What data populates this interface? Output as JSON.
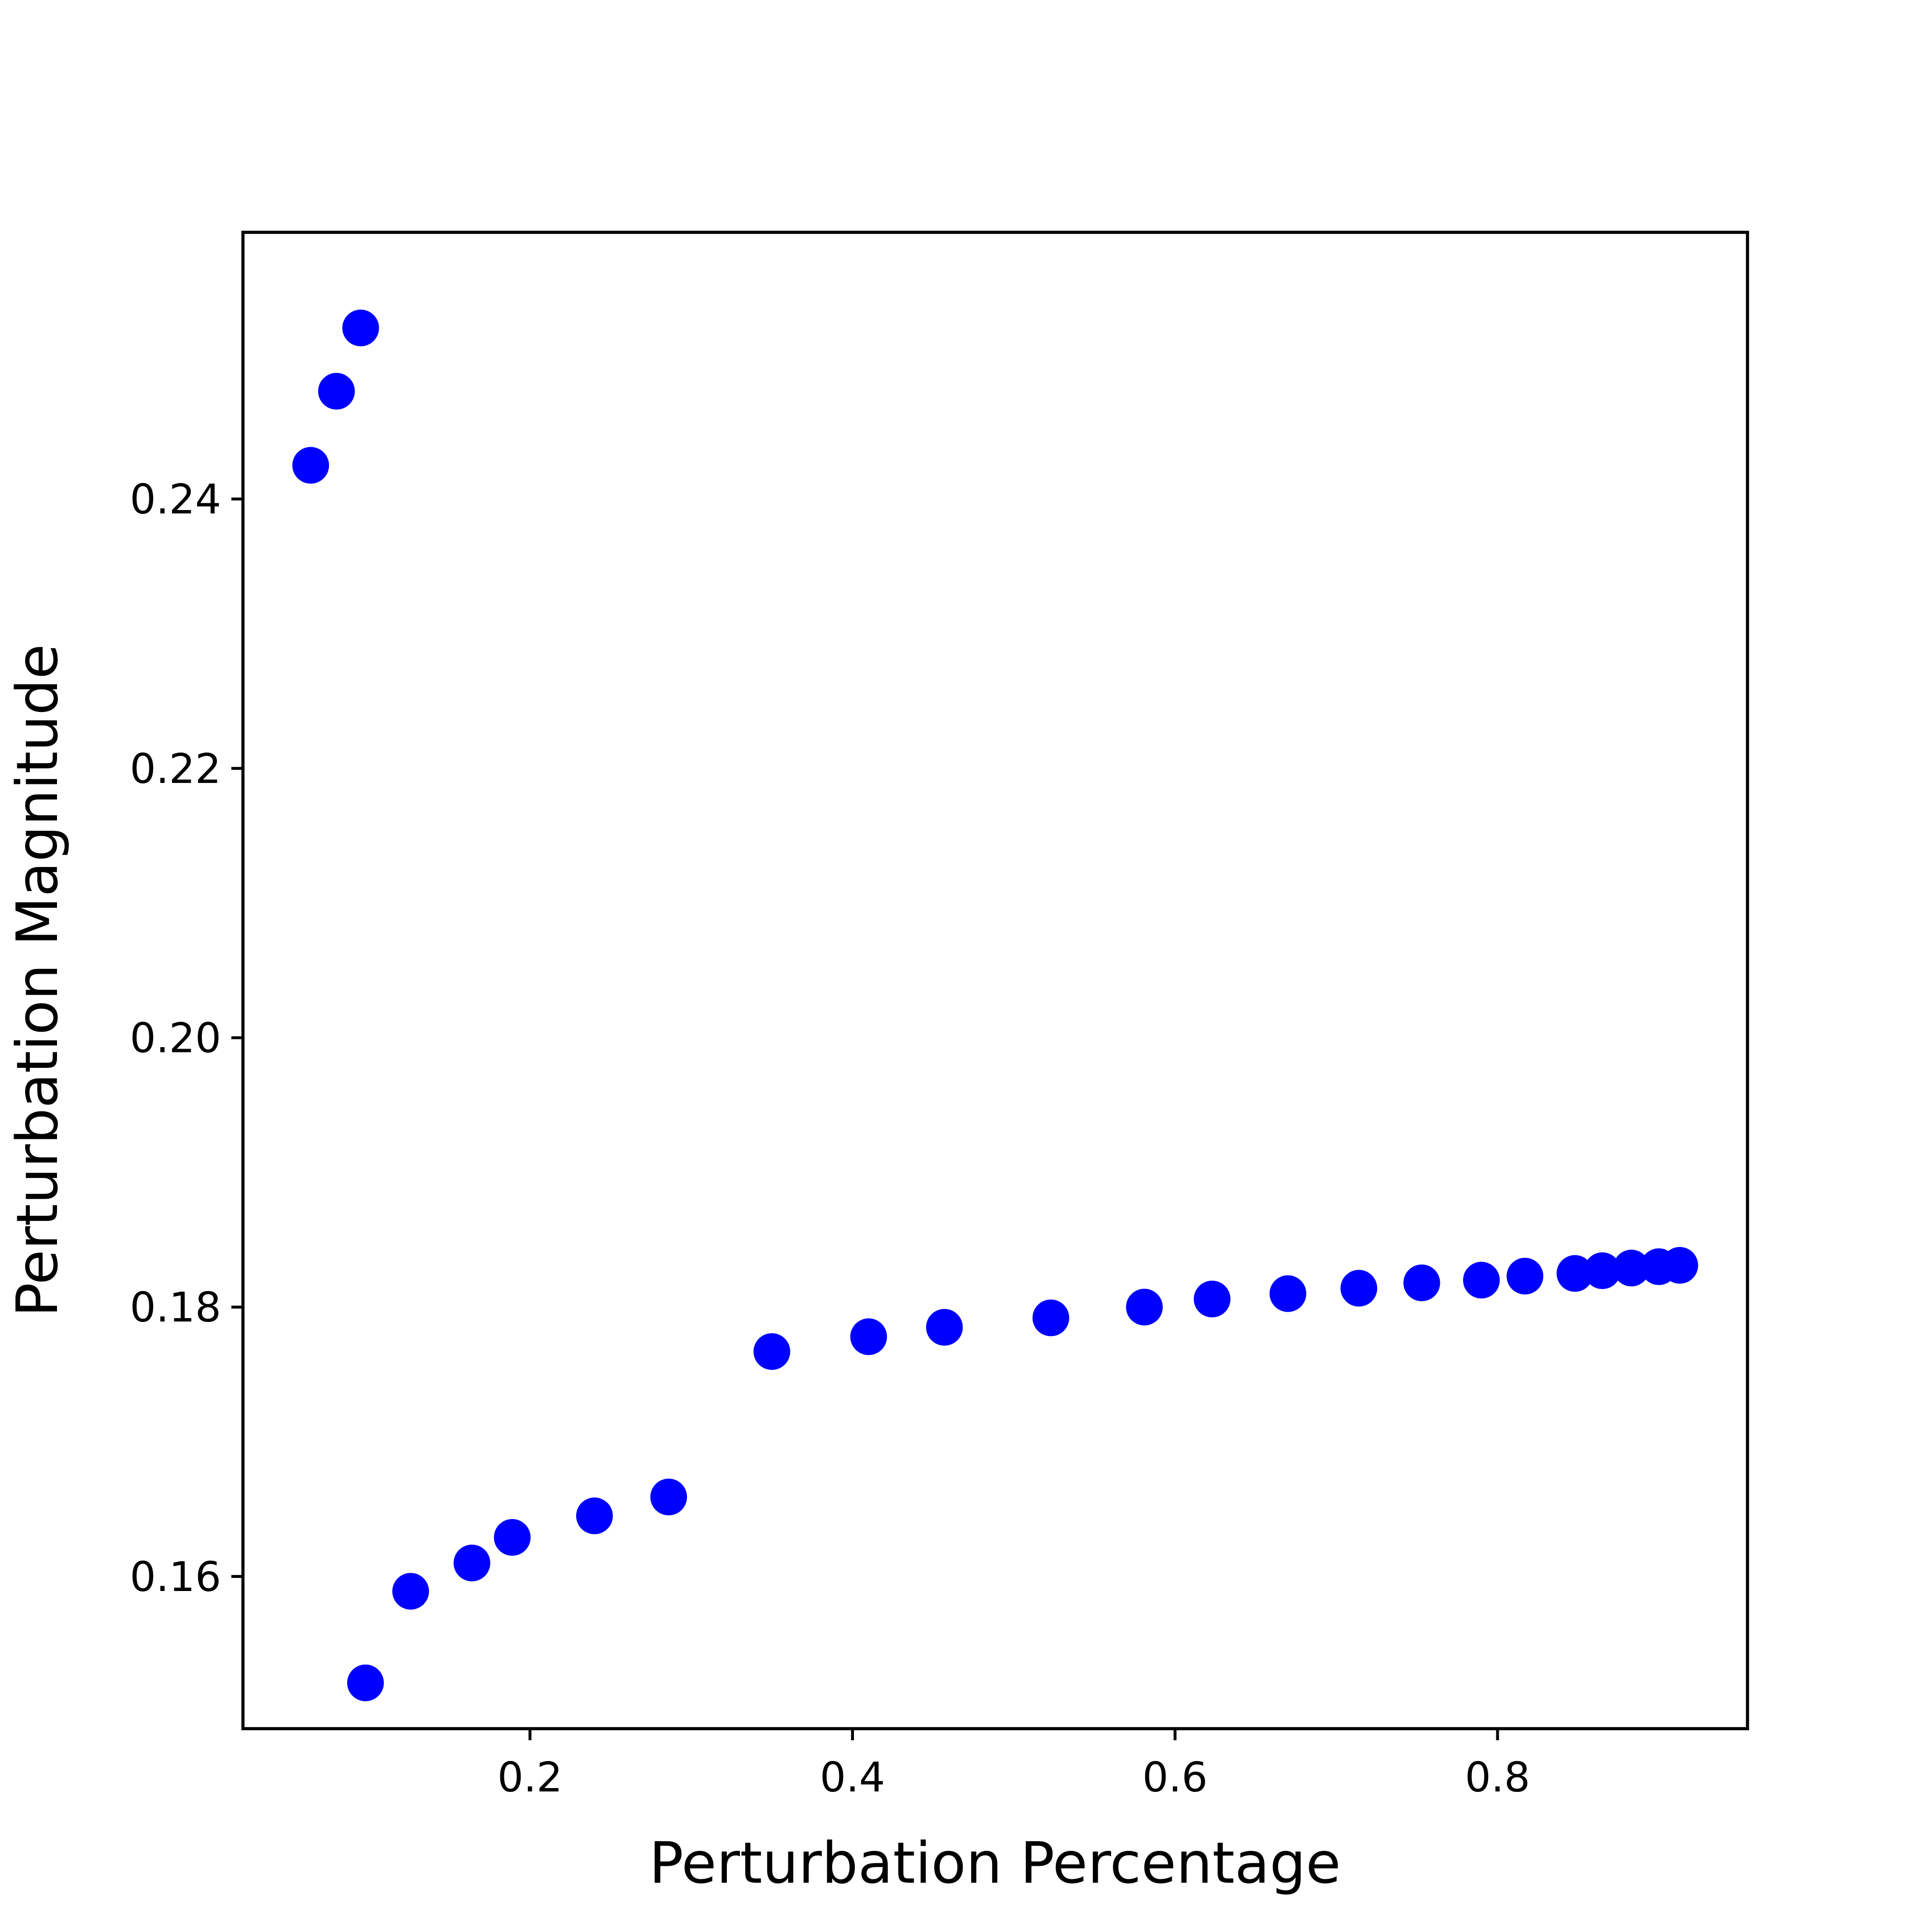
{
  "chart_data": {
    "type": "scatter",
    "title": "",
    "xlabel": "Perturbation Percentage",
    "ylabel": "Perturbation Magnitude",
    "xlim": [
      0.022,
      0.955
    ],
    "ylim": [
      0.1487,
      0.2598
    ],
    "x_ticks": [
      {
        "value": 0.2,
        "label": "0.2"
      },
      {
        "value": 0.4,
        "label": "0.4"
      },
      {
        "value": 0.6,
        "label": "0.6"
      },
      {
        "value": 0.8,
        "label": "0.8"
      }
    ],
    "y_ticks": [
      {
        "value": 0.16,
        "label": "0.16"
      },
      {
        "value": 0.18,
        "label": "0.18"
      },
      {
        "value": 0.2,
        "label": "0.20"
      },
      {
        "value": 0.22,
        "label": "0.22"
      },
      {
        "value": 0.24,
        "label": "0.24"
      }
    ],
    "grid": false,
    "marker_color": "#0000ff",
    "series": [
      {
        "points": [
          {
            "x": 0.064,
            "y": 0.2425
          },
          {
            "x": 0.08,
            "y": 0.248
          },
          {
            "x": 0.095,
            "y": 0.2527
          },
          {
            "x": 0.098,
            "y": 0.1521
          },
          {
            "x": 0.126,
            "y": 0.1589
          },
          {
            "x": 0.164,
            "y": 0.161
          },
          {
            "x": 0.189,
            "y": 0.1629
          },
          {
            "x": 0.24,
            "y": 0.1645
          },
          {
            "x": 0.286,
            "y": 0.1659
          },
          {
            "x": 0.35,
            "y": 0.1767
          },
          {
            "x": 0.41,
            "y": 0.1778
          },
          {
            "x": 0.457,
            "y": 0.1785
          },
          {
            "x": 0.523,
            "y": 0.1792
          },
          {
            "x": 0.581,
            "y": 0.18
          },
          {
            "x": 0.623,
            "y": 0.1806
          },
          {
            "x": 0.67,
            "y": 0.181
          },
          {
            "x": 0.714,
            "y": 0.1814
          },
          {
            "x": 0.753,
            "y": 0.1818
          },
          {
            "x": 0.79,
            "y": 0.182
          },
          {
            "x": 0.817,
            "y": 0.1823
          },
          {
            "x": 0.848,
            "y": 0.1825
          },
          {
            "x": 0.865,
            "y": 0.1827
          },
          {
            "x": 0.883,
            "y": 0.1829
          },
          {
            "x": 0.9,
            "y": 0.183
          },
          {
            "x": 0.913,
            "y": 0.1831
          }
        ]
      }
    ]
  }
}
